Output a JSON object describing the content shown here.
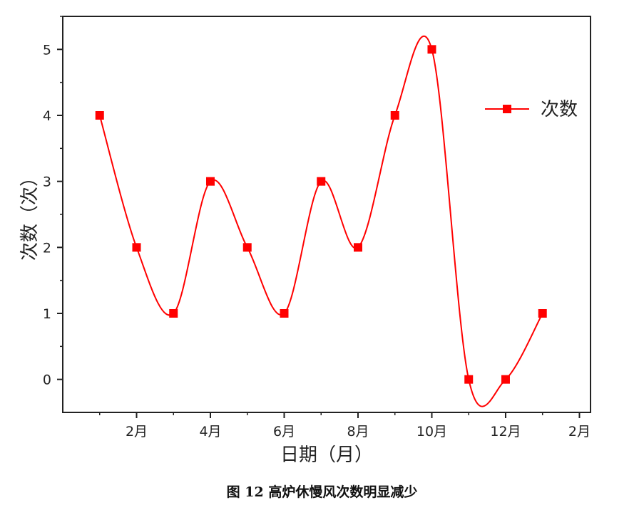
{
  "caption": "图 12 高炉休慢风次数明显减少",
  "chart_data": {
    "type": "line",
    "xlabel": "日期（月）",
    "ylabel": "次数（次）",
    "x": [
      1,
      2,
      3,
      4,
      5,
      6,
      7,
      8,
      9,
      10,
      11,
      12,
      13
    ],
    "x_ticks": [
      {
        "x": 2,
        "label": "2月"
      },
      {
        "x": 4,
        "label": "4月"
      },
      {
        "x": 6,
        "label": "6月"
      },
      {
        "x": 8,
        "label": "8月"
      },
      {
        "x": 10,
        "label": "10月"
      },
      {
        "x": 12,
        "label": "12月"
      },
      {
        "x": 14,
        "label": "2月"
      }
    ],
    "y_ticks": [
      0,
      1,
      2,
      3,
      4,
      5
    ],
    "xlim": [
      0,
      14.3
    ],
    "ylim": [
      -0.5,
      5.5
    ],
    "series": [
      {
        "name": "次数",
        "values": [
          4,
          2,
          1,
          3,
          2,
          1,
          3,
          2,
          4,
          5,
          0,
          0,
          1
        ],
        "color": "#ff0000",
        "marker": "square",
        "smooth": true
      }
    ],
    "legend_position": "top-right",
    "grid": false
  }
}
